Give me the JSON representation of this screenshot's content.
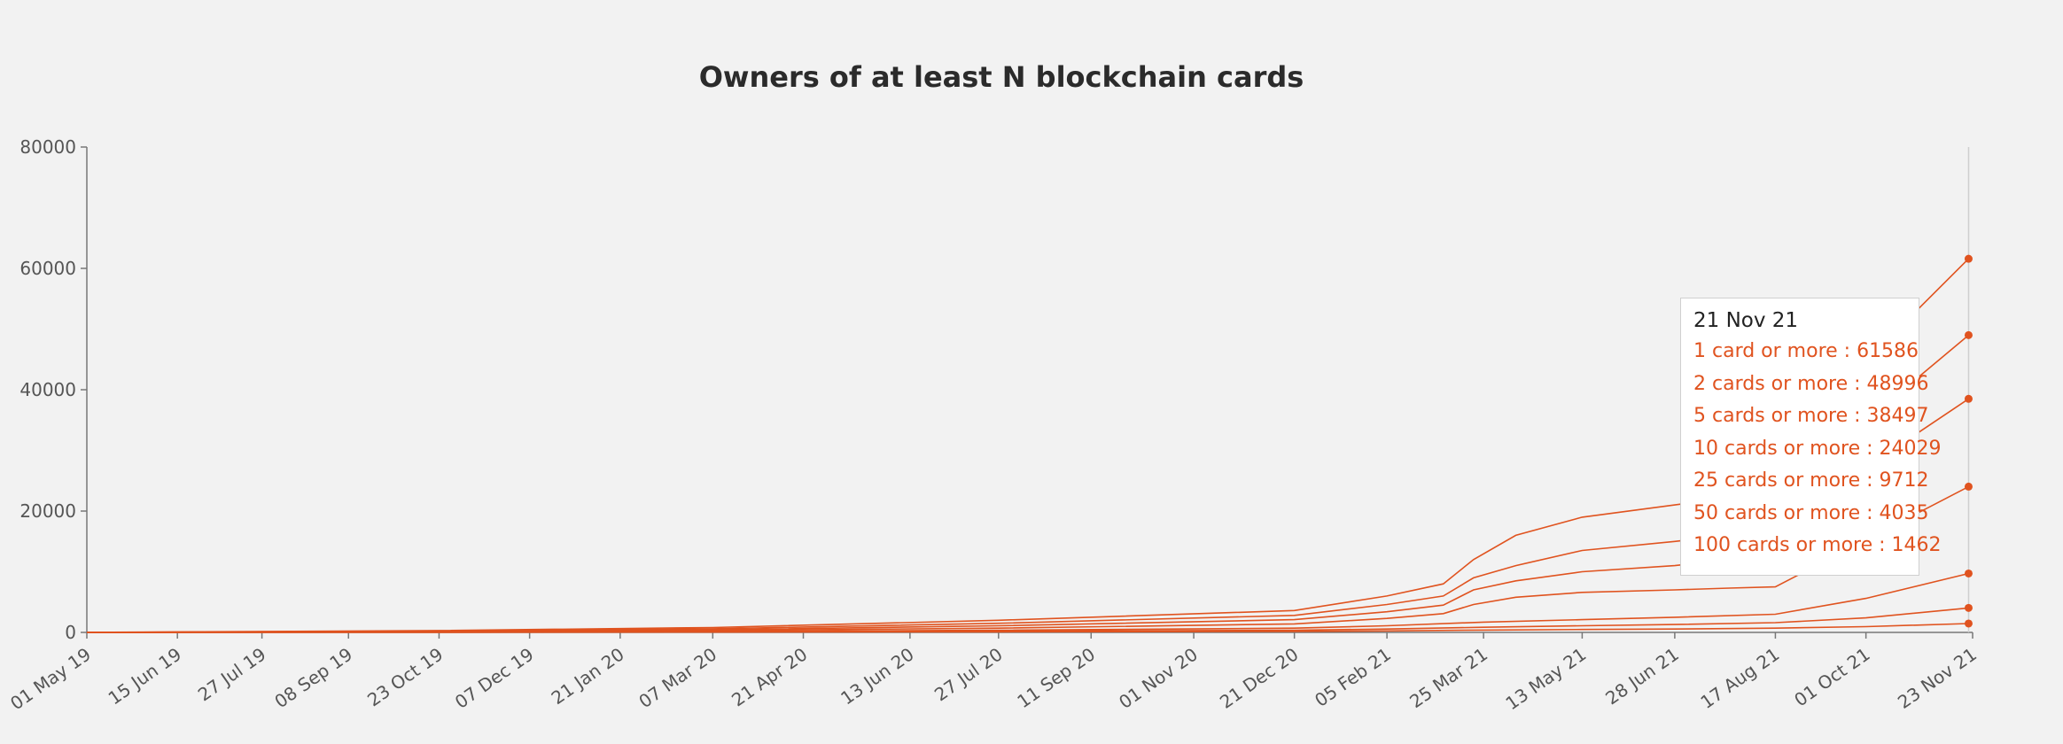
{
  "chart_data": {
    "type": "line",
    "title": "Owners of at least N blockchain cards",
    "xlabel": "",
    "ylabel": "",
    "ylim": [
      0,
      80000
    ],
    "y_ticks": [
      "0",
      "20000",
      "40000",
      "60000",
      "80000"
    ],
    "x_range": [
      "2019-05-01",
      "2021-11-23"
    ],
    "x_ticks": [
      {
        "date": "2019-05-01",
        "label": "01 May 19"
      },
      {
        "date": "2019-06-15",
        "label": "15 Jun 19"
      },
      {
        "date": "2019-07-27",
        "label": "27 Jul 19"
      },
      {
        "date": "2019-09-08",
        "label": "08 Sep 19"
      },
      {
        "date": "2019-10-23",
        "label": "23 Oct 19"
      },
      {
        "date": "2019-12-07",
        "label": "07 Dec 19"
      },
      {
        "date": "2020-01-21",
        "label": "21 Jan 20"
      },
      {
        "date": "2020-03-07",
        "label": "07 Mar 20"
      },
      {
        "date": "2020-04-21",
        "label": "21 Apr 20"
      },
      {
        "date": "2020-06-13",
        "label": "13 Jun 20"
      },
      {
        "date": "2020-07-27",
        "label": "27 Jul 20"
      },
      {
        "date": "2020-09-11",
        "label": "11 Sep 20"
      },
      {
        "date": "2020-11-01",
        "label": "01 Nov 20"
      },
      {
        "date": "2020-12-21",
        "label": "21 Dec 20"
      },
      {
        "date": "2021-02-05",
        "label": "05 Feb 21"
      },
      {
        "date": "2021-03-25",
        "label": "25 Mar 21"
      },
      {
        "date": "2021-05-13",
        "label": "13 May 21"
      },
      {
        "date": "2021-06-28",
        "label": "28 Jun 21"
      },
      {
        "date": "2021-08-17",
        "label": "17 Aug 21"
      },
      {
        "date": "2021-10-01",
        "label": "01 Oct 21"
      },
      {
        "date": "2021-11-23",
        "label": "23 Nov 21"
      }
    ],
    "line_color": "#e0531f",
    "grid": false,
    "legend": "none",
    "series": [
      {
        "name": "1 card or more",
        "x": [
          "2019-05-01",
          "2019-10-23",
          "2020-03-07",
          "2020-07-27",
          "2020-12-21",
          "2021-02-05",
          "2021-03-05",
          "2021-03-20",
          "2021-04-10",
          "2021-05-13",
          "2021-06-28",
          "2021-07-25",
          "2021-11-21"
        ],
        "values": [
          0,
          300,
          800,
          2000,
          3600,
          6000,
          8000,
          12000,
          16000,
          19000,
          21000,
          22200,
          61586
        ]
      },
      {
        "name": "2 cards or more",
        "x": [
          "2019-05-01",
          "2019-10-23",
          "2020-03-07",
          "2020-07-27",
          "2020-12-21",
          "2021-02-05",
          "2021-03-05",
          "2021-03-20",
          "2021-04-10",
          "2021-05-13",
          "2021-06-28",
          "2021-07-25",
          "2021-11-21"
        ],
        "values": [
          0,
          220,
          600,
          1500,
          2800,
          4600,
          6000,
          9000,
          11000,
          13500,
          15000,
          16000,
          48996
        ]
      },
      {
        "name": "5 cards or more",
        "x": [
          "2019-05-01",
          "2019-10-23",
          "2020-03-07",
          "2020-07-27",
          "2020-12-21",
          "2021-02-05",
          "2021-03-05",
          "2021-03-20",
          "2021-04-10",
          "2021-05-13",
          "2021-06-28",
          "2021-07-25",
          "2021-11-21"
        ],
        "values": [
          0,
          160,
          420,
          1100,
          2100,
          3400,
          4500,
          7000,
          8500,
          10000,
          11000,
          12000,
          38497
        ]
      },
      {
        "name": "10 cards or more",
        "x": [
          "2019-05-01",
          "2019-10-23",
          "2020-03-07",
          "2020-07-27",
          "2020-12-21",
          "2021-02-05",
          "2021-03-05",
          "2021-03-20",
          "2021-04-10",
          "2021-05-13",
          "2021-06-28",
          "2021-07-25",
          "2021-08-17",
          "2021-11-21"
        ],
        "values": [
          0,
          110,
          300,
          700,
          1400,
          2300,
          3100,
          4600,
          5800,
          6600,
          7000,
          7300,
          7500,
          24029
        ]
      },
      {
        "name": "25 cards or more",
        "x": [
          "2019-05-01",
          "2019-10-23",
          "2020-03-07",
          "2020-07-27",
          "2020-12-21",
          "2021-02-05",
          "2021-03-25",
          "2021-05-13",
          "2021-06-28",
          "2021-08-17",
          "2021-10-01",
          "2021-11-21"
        ],
        "values": [
          0,
          60,
          160,
          350,
          700,
          1100,
          1700,
          2100,
          2500,
          3000,
          5600,
          9712
        ]
      },
      {
        "name": "50 cards or more",
        "x": [
          "2019-05-01",
          "2019-10-23",
          "2020-03-07",
          "2020-07-27",
          "2020-12-21",
          "2021-02-05",
          "2021-03-25",
          "2021-05-13",
          "2021-06-28",
          "2021-08-17",
          "2021-10-01",
          "2021-11-21"
        ],
        "values": [
          0,
          30,
          90,
          200,
          350,
          550,
          850,
          1100,
          1300,
          1600,
          2400,
          4035
        ]
      },
      {
        "name": "100 cards or more",
        "x": [
          "2019-05-01",
          "2019-10-23",
          "2020-03-07",
          "2020-07-27",
          "2020-12-21",
          "2021-02-05",
          "2021-03-25",
          "2021-05-13",
          "2021-06-28",
          "2021-08-17",
          "2021-10-01",
          "2021-11-21"
        ],
        "values": [
          0,
          15,
          40,
          90,
          160,
          250,
          380,
          480,
          560,
          700,
          950,
          1462
        ]
      }
    ]
  },
  "tooltip": {
    "date": "21 Nov 21",
    "rows": [
      "1 card or more : 61586",
      "2 cards or more : 48996",
      "5 cards or more : 38497",
      "10 cards or more : 24029",
      "25 cards or more : 9712",
      "50 cards or more : 4035",
      "100 cards or more : 1462"
    ]
  }
}
